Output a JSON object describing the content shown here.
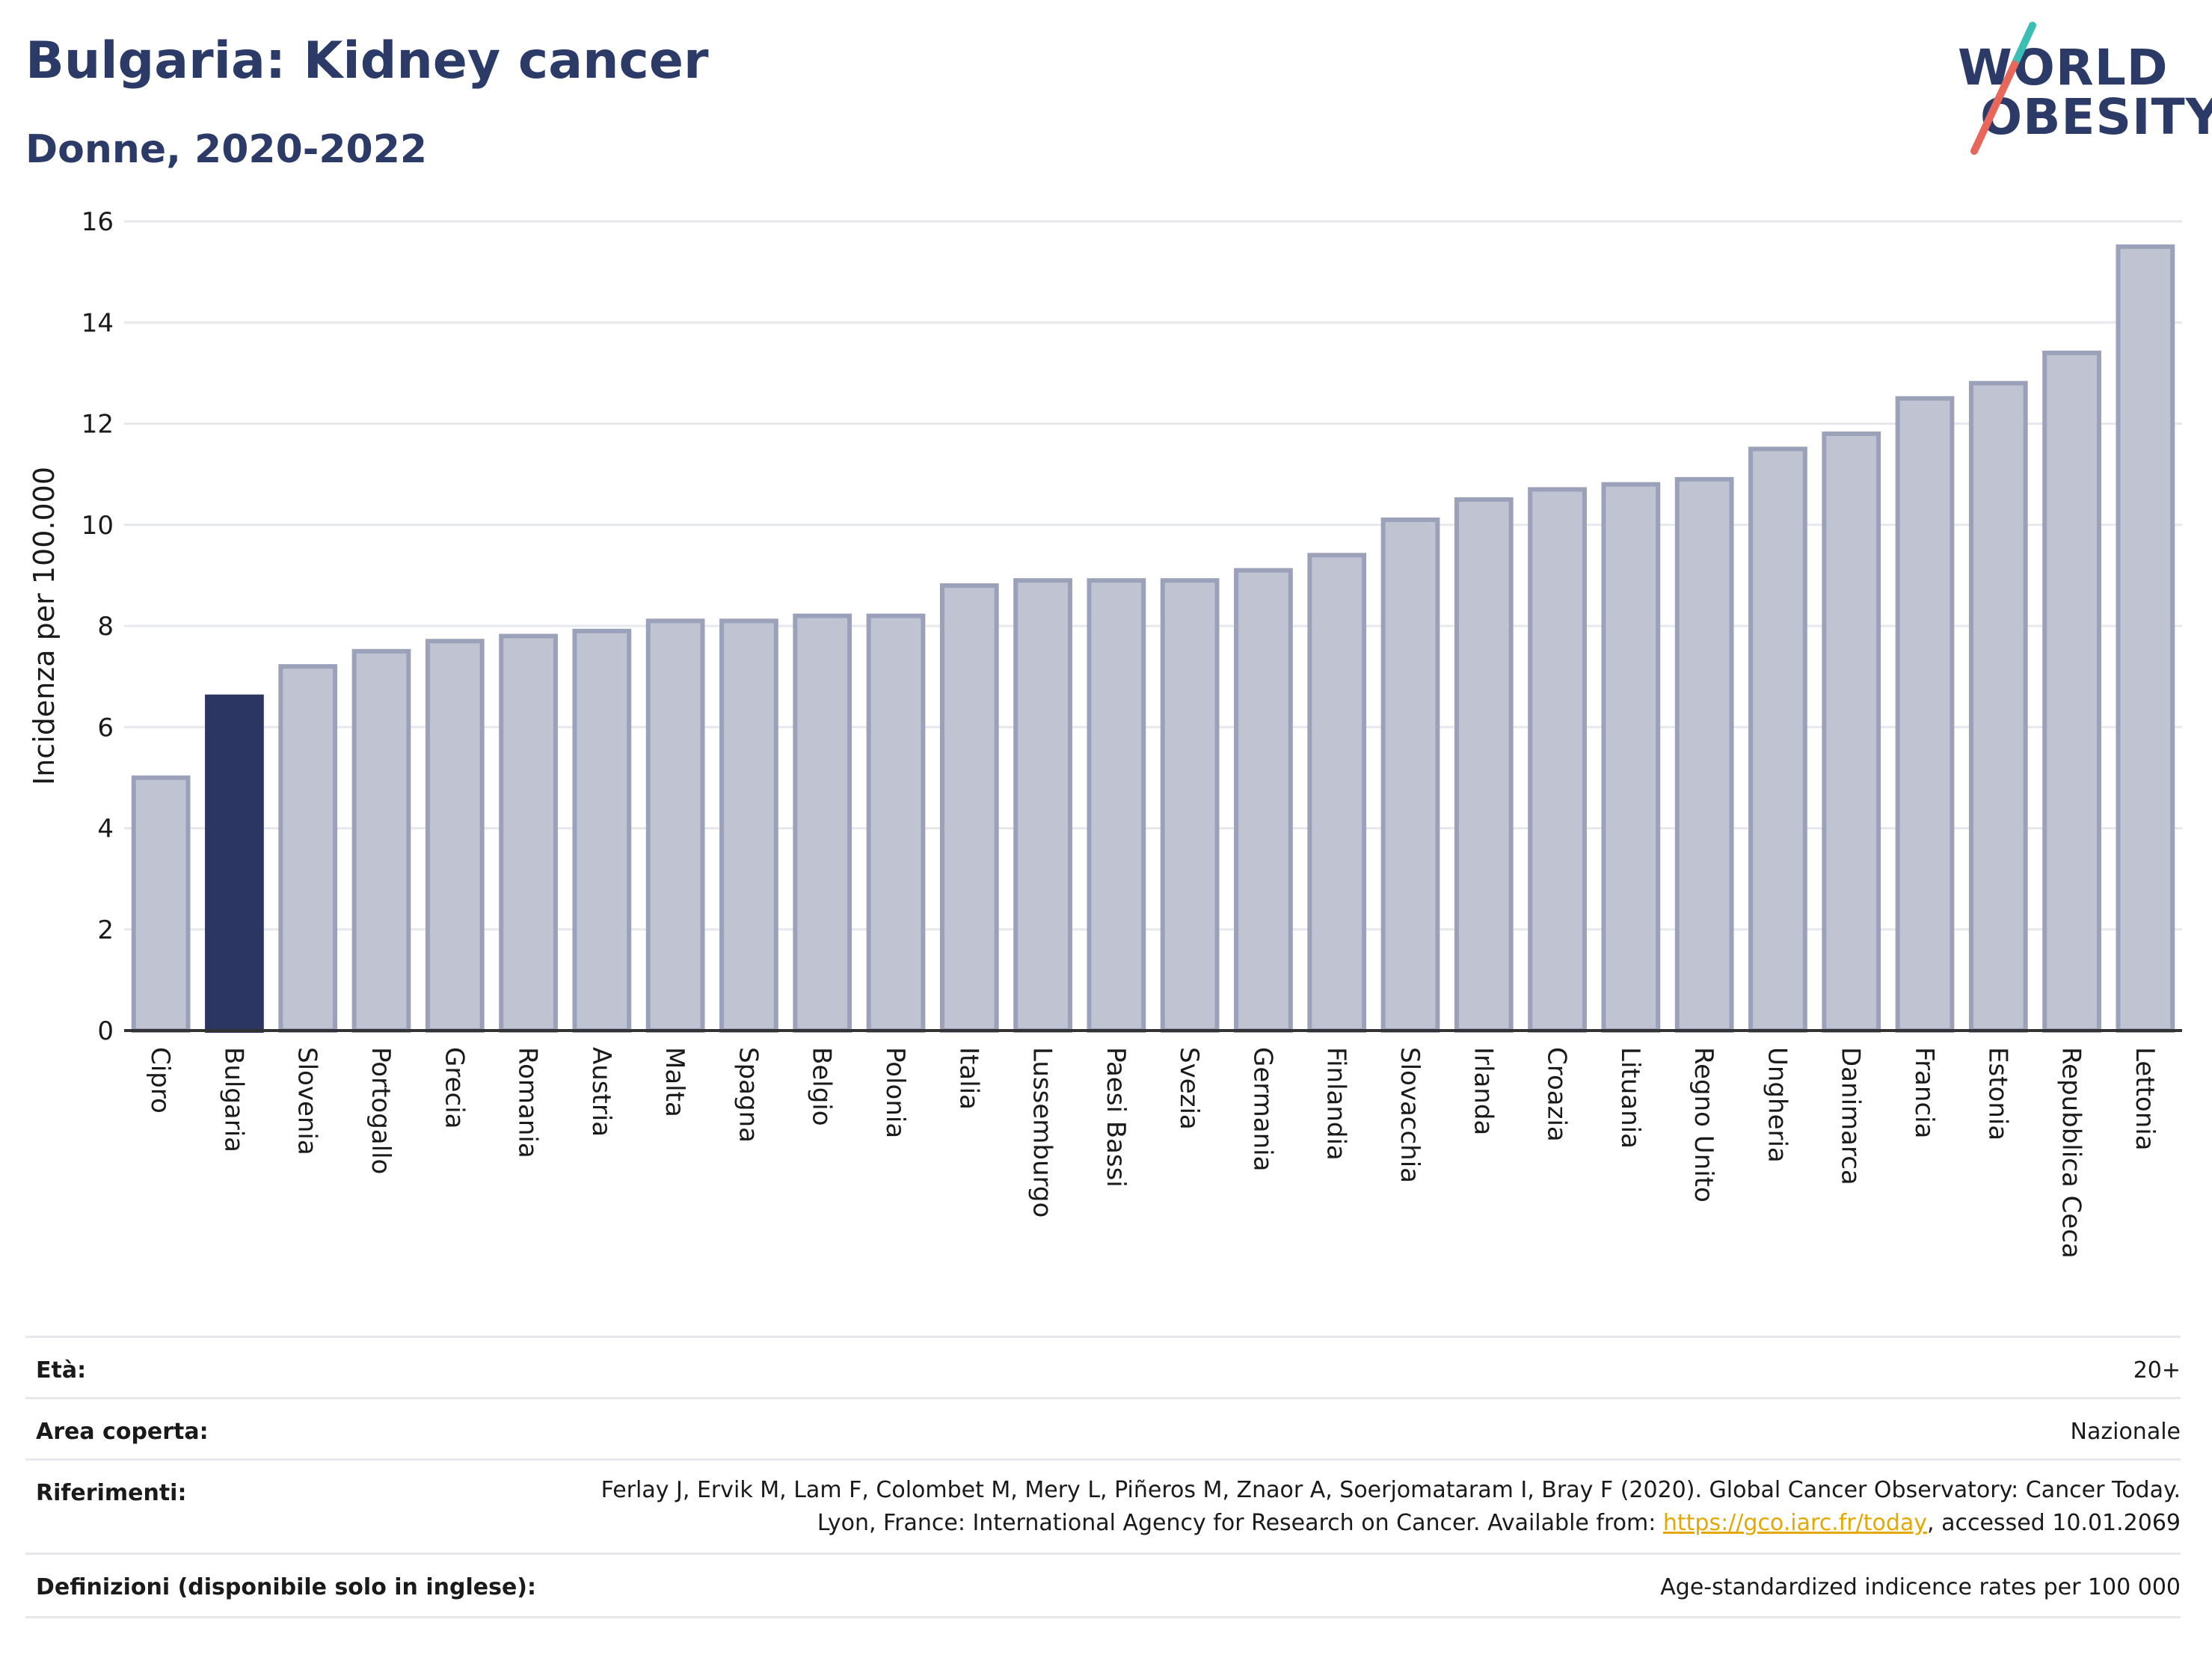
{
  "header": {
    "title": "Bulgaria: Kidney cancer",
    "subtitle": "Donne, 2020-2022"
  },
  "logo": {
    "line1": "WORLD",
    "line2": "OBESITY",
    "colors": {
      "text": "#2b3a67",
      "slash_top": "#3bbfb4",
      "slash_bottom": "#e8665a"
    }
  },
  "chart_data": {
    "type": "bar",
    "title": "",
    "xlabel": "",
    "ylabel": "Incidenza per 100.000",
    "ylim": [
      0,
      16
    ],
    "yticks": [
      0,
      2,
      4,
      6,
      8,
      10,
      12,
      14,
      16
    ],
    "grid": true,
    "highlight": "Bulgaria",
    "colors": {
      "bar": "#c0c4d2",
      "bar_stroke": "#9aa1b8",
      "highlight": "#2b3762"
    },
    "categories": [
      "Cipro",
      "Bulgaria",
      "Slovenia",
      "Portogallo",
      "Grecia",
      "Romania",
      "Austria",
      "Malta",
      "Spagna",
      "Belgio",
      "Polonia",
      "Italia",
      "Lussemburgo",
      "Paesi Bassi",
      "Svezia",
      "Germania",
      "Finlandia",
      "Slovacchia",
      "Irlanda",
      "Croazia",
      "Lituania",
      "Regno Unito",
      "Ungheria",
      "Danimarca",
      "Francia",
      "Estonia",
      "Repubblica Ceca",
      "Lettonia"
    ],
    "values": [
      5.0,
      6.6,
      7.2,
      7.5,
      7.7,
      7.8,
      7.9,
      8.1,
      8.1,
      8.2,
      8.2,
      8.8,
      8.9,
      8.9,
      8.9,
      9.1,
      9.4,
      10.1,
      10.5,
      10.7,
      10.8,
      10.9,
      11.5,
      11.8,
      12.5,
      12.8,
      13.4,
      15.5
    ]
  },
  "info": {
    "age_label": "Età:",
    "age_value": "20+",
    "area_label": "Area coperta:",
    "area_value": "Nazionale",
    "ref_label": "Riferimenti:",
    "ref_text_1": "Ferlay J, Ervik M, Lam F, Colombet M, Mery L, Piñeros M, Znaor A, Soerjomataram I, Bray F (2020). Global Cancer Observatory: Cancer Today. Lyon, France: International Agency for Research on Cancer. Available from: ",
    "ref_link": "https://gco.iarc.fr/today",
    "ref_text_2": ", accessed 10.01.2069",
    "def_label": "Definizioni (disponibile solo in inglese):",
    "def_value": "Age-standardized indicence rates per 100 000"
  }
}
